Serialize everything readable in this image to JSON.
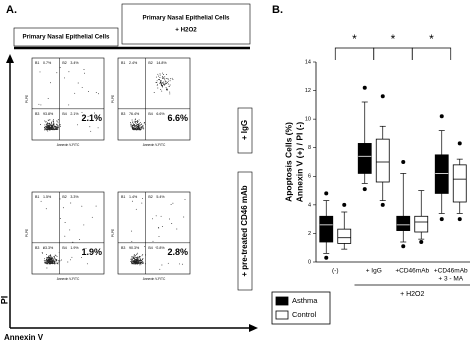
{
  "panel_a": {
    "label": "A.",
    "col_headers": [
      [
        "Primary Nasal Epithelial Cells"
      ],
      [
        "Primary Nasal Epithelial Cells",
        "+ H2O2"
      ]
    ],
    "row_labels": [
      "+ IgG",
      "+ pre-treated CD46 mAb"
    ],
    "y_axis": "PI",
    "x_axis": "Annexin V",
    "plot_x_label": "Annexin V-FITC",
    "plot_y_label": "PI-PE",
    "plots": [
      {
        "quadrants": [
          "B1",
          "B2",
          "B3",
          "B4"
        ],
        "quadrant_values": [
          "0.7%",
          "3.4%",
          "93.8%",
          "2.1%"
        ],
        "highlight": "2.1%"
      },
      {
        "quadrants": [
          "B1",
          "B2",
          "B3",
          "B4"
        ],
        "quadrant_values": [
          "2.4%",
          "14.8%",
          "76.4%",
          "6.6%"
        ],
        "highlight": "6.6%"
      },
      {
        "quadrants": [
          "B1",
          "B2",
          "B3",
          "B4"
        ],
        "quadrant_values": [
          "1.5%",
          "3.3%",
          "93.3%",
          "1.9%"
        ],
        "highlight": "1.9%"
      },
      {
        "quadrants": [
          "B1",
          "B2",
          "B3",
          "B4"
        ],
        "quadrant_values": [
          "1.4%",
          "5.4%",
          "90.3%",
          "2.8%"
        ],
        "highlight": "2.8%"
      }
    ]
  },
  "panel_b_label": "B.",
  "chart_data": {
    "type": "box",
    "y_label": [
      "Apoptosis Cells (%)",
      "Annexin V (+) / PI (-)"
    ],
    "ylim": [
      0,
      14
    ],
    "yticks": [
      0,
      2,
      4,
      6,
      8,
      10,
      12,
      14
    ],
    "categories": [
      "(-)",
      "+ IgG",
      "+CD46mAb",
      "+CD46mAb"
    ],
    "category_note": "+ 3 - MA",
    "group_label": "+ H2O2",
    "significance": [
      "*",
      "*",
      "*"
    ],
    "legend": "lower left",
    "series": [
      {
        "name": "Asthma",
        "color": "#000000",
        "boxes": [
          {
            "min": 0.6,
            "q1": 1.4,
            "median": 2.6,
            "q3": 3.2,
            "max": 4.3,
            "outliers": [
              0.3,
              4.8
            ]
          },
          {
            "min": 5.5,
            "q1": 6.2,
            "median": 7.4,
            "q3": 8.3,
            "max": 11.2,
            "outliers": [
              5.1,
              12.2
            ]
          },
          {
            "min": 1.4,
            "q1": 2.2,
            "median": 2.6,
            "q3": 3.2,
            "max": 6.2,
            "outliers": [
              1.1,
              7.0
            ]
          },
          {
            "min": 3.4,
            "q1": 4.8,
            "median": 6.2,
            "q3": 7.5,
            "max": 9.2,
            "outliers": [
              3.0,
              10.2
            ]
          }
        ]
      },
      {
        "name": "Control",
        "color": "#ffffff",
        "boxes": [
          {
            "min": 0.9,
            "q1": 1.3,
            "median": 1.7,
            "q3": 2.3,
            "max": 3.5,
            "outliers": [
              4.0
            ]
          },
          {
            "min": 4.3,
            "q1": 5.6,
            "median": 7.0,
            "q3": 8.6,
            "max": 9.5,
            "outliers": [
              4.0,
              11.6
            ]
          },
          {
            "min": 1.6,
            "q1": 2.1,
            "median": 2.8,
            "q3": 3.2,
            "max": 5.0,
            "outliers": [
              1.4
            ]
          },
          {
            "min": 3.4,
            "q1": 4.2,
            "median": 5.8,
            "q3": 6.8,
            "max": 7.2,
            "outliers": [
              3.0,
              8.3
            ]
          }
        ]
      }
    ]
  }
}
